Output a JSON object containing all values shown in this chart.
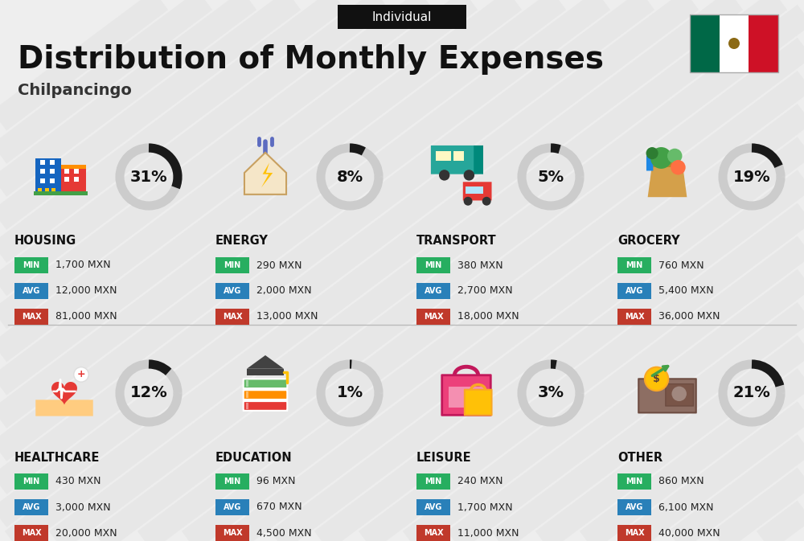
{
  "title": "Distribution of Monthly Expenses",
  "subtitle": "Individual",
  "city": "Chilpancingo",
  "bg_color": "#eeeeee",
  "categories": [
    {
      "name": "HOUSING",
      "pct": 31,
      "min": "1,700 MXN",
      "avg": "12,000 MXN",
      "max": "81,000 MXN",
      "icon": "housing",
      "row": 0,
      "col": 0
    },
    {
      "name": "ENERGY",
      "pct": 8,
      "min": "290 MXN",
      "avg": "2,000 MXN",
      "max": "13,000 MXN",
      "icon": "energy",
      "row": 0,
      "col": 1
    },
    {
      "name": "TRANSPORT",
      "pct": 5,
      "min": "380 MXN",
      "avg": "2,700 MXN",
      "max": "18,000 MXN",
      "icon": "transport",
      "row": 0,
      "col": 2
    },
    {
      "name": "GROCERY",
      "pct": 19,
      "min": "760 MXN",
      "avg": "5,400 MXN",
      "max": "36,000 MXN",
      "icon": "grocery",
      "row": 0,
      "col": 3
    },
    {
      "name": "HEALTHCARE",
      "pct": 12,
      "min": "430 MXN",
      "avg": "3,000 MXN",
      "max": "20,000 MXN",
      "icon": "healthcare",
      "row": 1,
      "col": 0
    },
    {
      "name": "EDUCATION",
      "pct": 1,
      "min": "96 MXN",
      "avg": "670 MXN",
      "max": "4,500 MXN",
      "icon": "education",
      "row": 1,
      "col": 1
    },
    {
      "name": "LEISURE",
      "pct": 3,
      "min": "240 MXN",
      "avg": "1,700 MXN",
      "max": "11,000 MXN",
      "icon": "leisure",
      "row": 1,
      "col": 2
    },
    {
      "name": "OTHER",
      "pct": 21,
      "min": "860 MXN",
      "avg": "6,100 MXN",
      "max": "40,000 MXN",
      "icon": "other",
      "row": 1,
      "col": 3
    }
  ],
  "color_min": "#27ae60",
  "color_avg": "#2980b9",
  "color_max": "#c0392b",
  "ring_dark": "#1a1a1a",
  "ring_light": "#cccccc",
  "stripe_color": "#e5e5e5",
  "header_bg": "#111111",
  "header_fg": "#ffffff",
  "title_color": "#111111",
  "city_color": "#333333"
}
